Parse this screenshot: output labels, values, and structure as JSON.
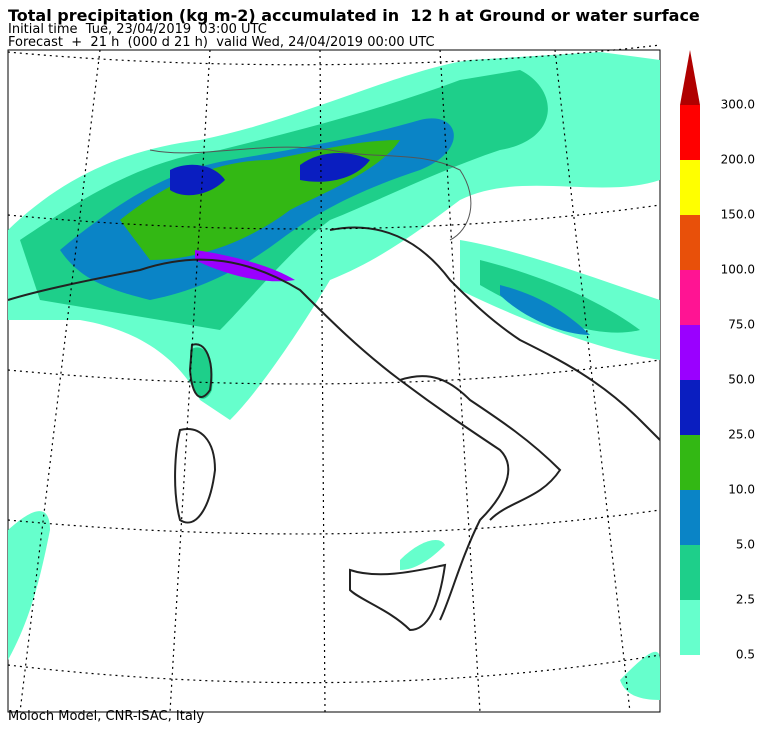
{
  "header": {
    "title": "Total precipitation (kg m-2) accumulated in  12 h at Ground or water surface",
    "initial_time": "Initial time  Tue, 23/04/2019  03:00 UTC",
    "forecast": "Forecast  +  21 h  (000 d 21 h)  valid Wed, 24/04/2019 00:00 UTC"
  },
  "colorbar": {
    "levels": [
      0.5,
      2.5,
      {
        "value": 5,
        "label": "5.0"
      },
      {
        "value": 10,
        "label": "10.0"
      },
      {
        "value": 25,
        "label": "25.0"
      },
      {
        "value": 50,
        "label": "50.0"
      },
      {
        "value": 75,
        "label": "75.0"
      },
      {
        "value": 100,
        "label": "100.0"
      },
      {
        "value": 150,
        "label": "150.0"
      },
      {
        "value": 200,
        "label": "200.0"
      },
      {
        "value": 300,
        "label": "300.0"
      }
    ],
    "colors": [
      "#66ffcc",
      "#1ecf8a",
      "#0a84c6",
      "#33b814",
      "#0a1ec0",
      "#9a00ff",
      "#ff1493",
      "#e8500a",
      "#ffff00",
      "#ff0000",
      "#b00000"
    ]
  },
  "footer": "Moloch Model, CNR-ISAC, Italy"
}
